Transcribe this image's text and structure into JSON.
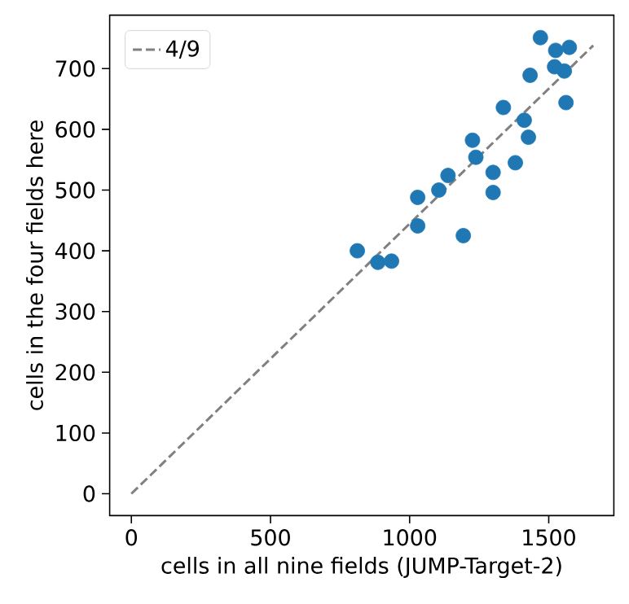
{
  "chart_data": {
    "type": "scatter",
    "xlabel": "cells in all nine fields (JUMP-Target-2)",
    "ylabel": "cells in the four fields here",
    "xlim": [
      -78,
      1734
    ],
    "ylim": [
      -36,
      788
    ],
    "xticks": [
      0,
      500,
      1000,
      1500
    ],
    "yticks": [
      0,
      100,
      200,
      300,
      400,
      500,
      600,
      700
    ],
    "legend": "top left",
    "grid": false,
    "series": [
      {
        "color": "#1f77b4",
        "marker": "circle",
        "x": [
          1470,
          1525,
          1574,
          1521,
          1556,
          1562,
          1433,
          1337,
          1412,
          1427,
          1380,
          1226,
          1238,
          1300,
          1300,
          1138,
          1105,
          1029,
          1029,
          1193,
          812,
          886,
          935
        ],
        "values": [
          751,
          730,
          735,
          703,
          696,
          644,
          689,
          636,
          615,
          587,
          545,
          582,
          554,
          529,
          496,
          524,
          500,
          488,
          441,
          425,
          400,
          381,
          383
        ]
      },
      {
        "type": "line",
        "name": "4/9",
        "color": "#808080",
        "line_style": "dashed",
        "marker": "none",
        "x": [
          0,
          1660
        ],
        "values": [
          0,
          738
        ]
      }
    ]
  }
}
